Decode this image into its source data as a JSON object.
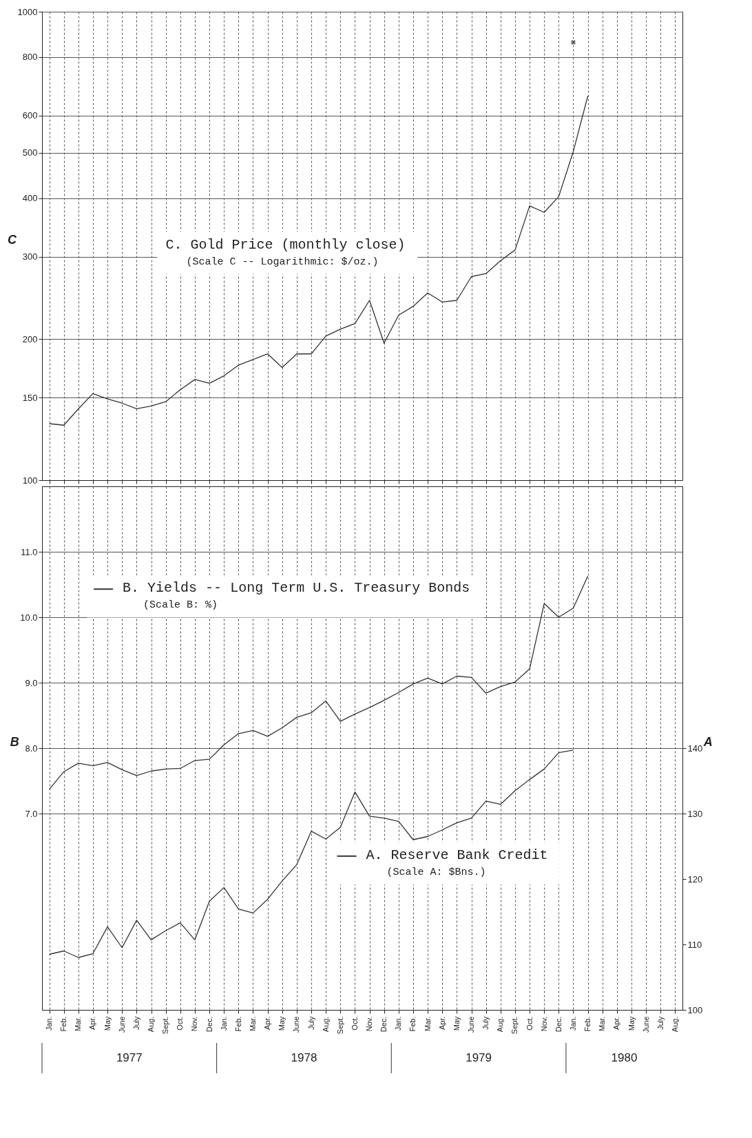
{
  "chart_data": [
    {
      "type": "line",
      "title": "C. Gold Price (monthly close)",
      "subtitle": "(Scale C -- Logarithmic: $/oz.)",
      "ylabel": "C",
      "log": true,
      "grid": true,
      "tick_labels": "y",
      "categories": [
        null,
        null,
        null,
        null,
        null,
        null,
        null,
        null,
        null,
        null,
        null,
        null,
        null,
        null,
        null,
        null,
        null,
        null,
        null,
        null,
        null,
        null,
        null,
        null,
        null,
        null,
        null,
        null,
        null,
        null,
        null,
        null,
        null,
        null,
        null,
        null,
        null,
        null,
        null,
        null,
        null,
        null,
        null,
        null
      ],
      "ylim": [
        100,
        1000
      ],
      "yticks": [
        100,
        150,
        200,
        300,
        400,
        500,
        600,
        800,
        1000
      ],
      "series": [
        {
          "color": "#333333",
          "values": [
            132,
            131,
            142,
            153,
            149,
            146,
            142,
            144,
            147,
            156,
            164,
            161,
            167,
            176,
            181,
            186,
            174,
            186,
            186,
            203,
            210,
            216,
            242,
            196,
            225,
            235,
            251,
            240,
            242,
            272,
            276,
            294,
            310,
            385,
            373,
            403,
            503,
            661,
            null,
            null,
            null,
            null,
            null,
            null
          ]
        },
        {
          "type": "scatter",
          "marker": "cross",
          "color": "#333333",
          "values": [
            null,
            null,
            null,
            null,
            null,
            null,
            null,
            null,
            null,
            null,
            null,
            null,
            null,
            null,
            null,
            null,
            null,
            null,
            null,
            null,
            null,
            null,
            null,
            null,
            null,
            null,
            null,
            null,
            null,
            null,
            null,
            null,
            null,
            null,
            null,
            null,
            860,
            null,
            null,
            null,
            null,
            null,
            null,
            null
          ]
        }
      ]
    },
    {
      "type": "line",
      "ylabel": "B",
      "y2label": "A",
      "grid": true,
      "legend": "top left",
      "categories": [
        "Jan.",
        "Feb.",
        "Mar.",
        "Apr.",
        "May",
        "June",
        "July",
        "Aug.",
        "Sept.",
        "Oct.",
        "Nov.",
        "Dec.",
        "Jan.",
        "Feb.",
        "Mar.",
        "Apr.",
        "May",
        "June",
        "July",
        "Aug.",
        "Sept.",
        "Oct.",
        "Nov.",
        "Dec.",
        "Jan.",
        "Feb.",
        "Mar.",
        "Apr.",
        "May",
        "June",
        "July",
        "Aug.",
        "Sept.",
        "Oct.",
        "Nov.",
        "Dec.",
        "Jan.",
        "Feb.",
        "Mar.",
        "Apr.",
        "May",
        "June",
        "July",
        "Aug."
      ],
      "ylim": [
        4,
        12
      ],
      "yticks": [
        {
          "value": 7,
          "label": "7.0"
        },
        {
          "value": 8,
          "label": "8.0"
        },
        {
          "value": 9,
          "label": "9.0"
        },
        {
          "value": 10,
          "label": "10.0"
        },
        {
          "value": 11,
          "label": "11.0"
        }
      ],
      "y2lim": [
        100,
        180
      ],
      "y2ticks": [
        100,
        110,
        120,
        130,
        140
      ],
      "series": [
        {
          "name": "B. Yields -- Long Term U.S. Treasury Bonds",
          "color": "#333333",
          "values": [
            7.37,
            7.64,
            7.77,
            7.73,
            7.78,
            7.67,
            7.58,
            7.65,
            7.68,
            7.69,
            7.81,
            7.83,
            8.05,
            8.22,
            8.27,
            8.18,
            8.31,
            8.47,
            8.54,
            8.72,
            8.41,
            8.52,
            8.62,
            8.73,
            8.85,
            8.98,
            9.07,
            8.98,
            9.1,
            9.08,
            8.84,
            8.94,
            9.01,
            9.21,
            10.21,
            10.0,
            10.14,
            10.63,
            null,
            null,
            null,
            null,
            null,
            null
          ]
        },
        {
          "name": "A. Reserve Bank Credit",
          "axis": "y2",
          "color": "#333333",
          "values": [
            108.5,
            109.0,
            108.0,
            108.6,
            112.7,
            109.5,
            113.7,
            110.7,
            112.1,
            113.3,
            110.7,
            116.6,
            118.7,
            115.4,
            114.8,
            116.9,
            119.7,
            122.2,
            127.3,
            126.1,
            127.9,
            133.3,
            129.6,
            129.3,
            128.8,
            126.0,
            126.5,
            127.5,
            128.6,
            129.3,
            131.9,
            131.4,
            133.5,
            135.2,
            136.8,
            139.3,
            139.7,
            null,
            null,
            null,
            null,
            null,
            null,
            null
          ]
        }
      ],
      "annotations": [
        "(Scale B: %)",
        "(Scale A: $Bns.)",
        "1977",
        "1978",
        "1979",
        "1980"
      ]
    }
  ]
}
